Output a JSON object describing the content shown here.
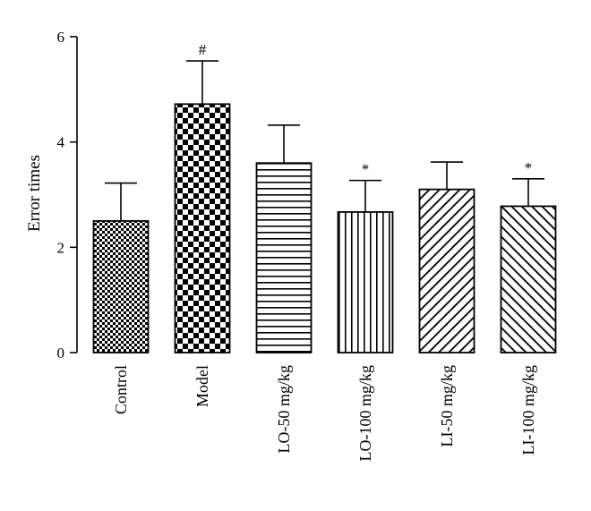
{
  "chart_data": {
    "type": "bar",
    "categories": [
      "Control",
      "Model",
      "LO-50 mg/kg",
      "LO-100 mg/kg",
      "LI-50 mg/kg",
      "LI-100 mg/kg"
    ],
    "values": [
      2.5,
      4.72,
      3.6,
      2.67,
      3.1,
      2.78
    ],
    "errors": [
      0.72,
      0.82,
      0.72,
      0.6,
      0.52,
      0.52
    ],
    "annotations": [
      "",
      "#",
      "",
      "*",
      "",
      "*"
    ],
    "patterns": [
      "checker-small",
      "checker-large",
      "horizontal-lines",
      "vertical-lines",
      "diagonal-up",
      "diagonal-down"
    ],
    "xlabel": "",
    "ylabel": "Error times",
    "ylim": [
      0,
      6
    ],
    "yticks": [
      0,
      2,
      4,
      6
    ],
    "grid": false,
    "legend": "none",
    "colors": {
      "bar_fill": "#000000",
      "background": "#ffffff"
    }
  }
}
